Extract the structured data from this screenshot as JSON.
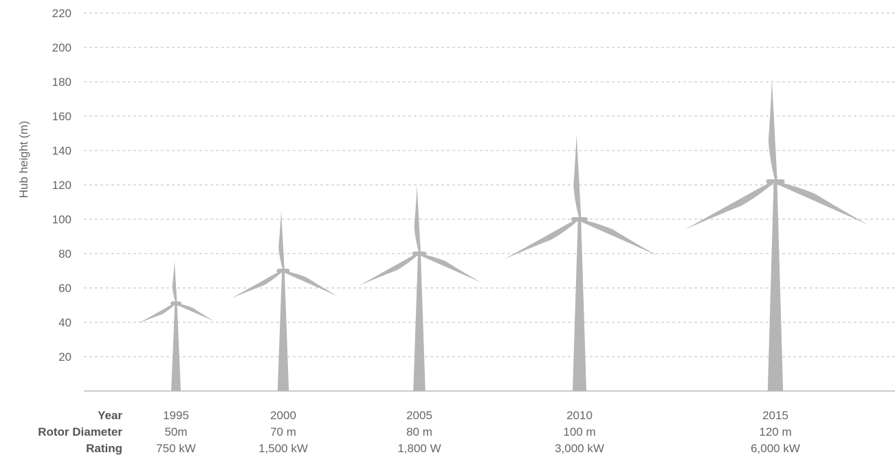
{
  "chart_data": {
    "type": "bar",
    "ylabel": "Hub height (m)",
    "ylim": [
      0,
      220
    ],
    "yticks": [
      20,
      40,
      60,
      80,
      100,
      120,
      140,
      160,
      180,
      200,
      220
    ],
    "grid": true,
    "row_labels": {
      "year": "Year",
      "rotor_diameter": "Rotor Diameter",
      "rating": "Rating"
    },
    "turbines": [
      {
        "year": "1995",
        "rotor_diameter_label": "50m",
        "rating": "750 kW",
        "hub_height": 51,
        "rotor_diameter": 50
      },
      {
        "year": "2000",
        "rotor_diameter_label": "70 m",
        "rating": "1,500 kW",
        "hub_height": 70,
        "rotor_diameter": 70
      },
      {
        "year": "2005",
        "rotor_diameter_label": "80 m",
        "rating": "1,800 W",
        "hub_height": 80,
        "rotor_diameter": 80
      },
      {
        "year": "2010",
        "rotor_diameter_label": "100 m",
        "rating": "3,000 kW",
        "hub_height": 100,
        "rotor_diameter": 100
      },
      {
        "year": "2015",
        "rotor_diameter_label": "120 m",
        "rating": "6,000 kW",
        "hub_height": 122,
        "rotor_diameter": 120
      }
    ],
    "colors": {
      "turbine": "#b5b5b5",
      "grid": "#bdbdbd",
      "baseline": "#bbbbbb",
      "text": "#666666"
    }
  }
}
